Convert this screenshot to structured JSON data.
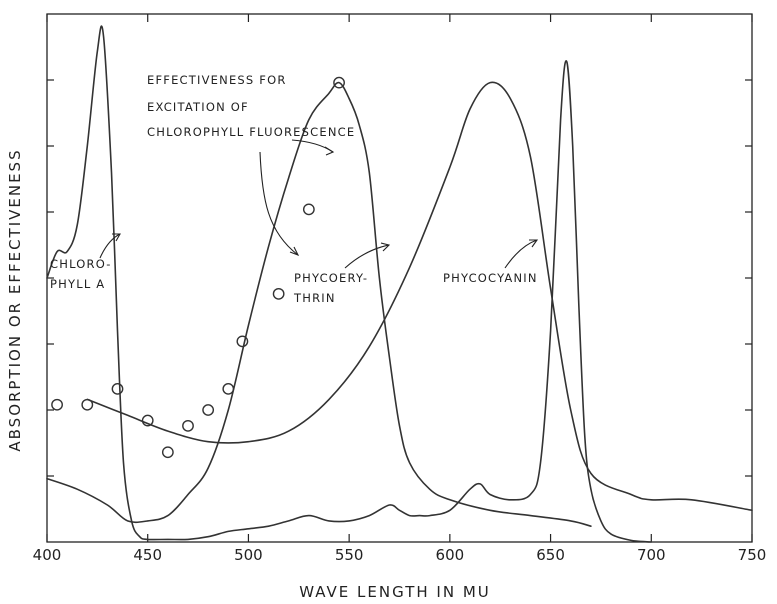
{
  "chart_data": {
    "type": "line",
    "title": "",
    "xlabel": "WAVE LENGTH IN MU",
    "ylabel": "ABSORPTION OR EFFECTIVENESS",
    "xlim": [
      400,
      750
    ],
    "ylim": [
      0,
      1
    ],
    "x_ticks": [
      400,
      450,
      500,
      550,
      600,
      650,
      700,
      750
    ],
    "y_ticks_labeled": false,
    "grid": false,
    "series": [
      {
        "name": "CHLORO-PHYLL A",
        "x": [
          400,
          405,
          410,
          415,
          420,
          425,
          428,
          432,
          435,
          438,
          442,
          446,
          450,
          460,
          470,
          480,
          490,
          500,
          510,
          520,
          530,
          540,
          550,
          560,
          570,
          575,
          580,
          585,
          590,
          600,
          610,
          615,
          620,
          630,
          640,
          645,
          650,
          655,
          658,
          661,
          664,
          667,
          670,
          675,
          680,
          690,
          700
        ],
        "y": [
          0.5,
          0.55,
          0.55,
          0.6,
          0.75,
          0.93,
          0.96,
          0.7,
          0.4,
          0.15,
          0.04,
          0.01,
          0.005,
          0.005,
          0.005,
          0.01,
          0.02,
          0.025,
          0.03,
          0.04,
          0.05,
          0.04,
          0.04,
          0.05,
          0.07,
          0.06,
          0.05,
          0.05,
          0.05,
          0.06,
          0.1,
          0.11,
          0.09,
          0.08,
          0.09,
          0.15,
          0.4,
          0.8,
          0.91,
          0.75,
          0.45,
          0.2,
          0.1,
          0.04,
          0.015,
          0.003,
          0.0
        ]
      },
      {
        "name": "PHYCOERY-THRIN",
        "x": [
          400,
          415,
          430,
          440,
          450,
          460,
          470,
          480,
          490,
          500,
          510,
          520,
          530,
          540,
          545,
          550,
          555,
          560,
          565,
          570,
          575,
          580,
          590,
          600,
          620,
          640,
          660,
          670
        ],
        "y": [
          0.12,
          0.1,
          0.07,
          0.04,
          0.04,
          0.05,
          0.09,
          0.14,
          0.25,
          0.41,
          0.56,
          0.69,
          0.8,
          0.85,
          0.87,
          0.84,
          0.79,
          0.7,
          0.5,
          0.35,
          0.22,
          0.15,
          0.1,
          0.08,
          0.06,
          0.05,
          0.04,
          0.03
        ]
      },
      {
        "name": "PHYCOCYANIN",
        "x": [
          420,
          440,
          460,
          480,
          500,
          520,
          540,
          560,
          580,
          600,
          610,
          620,
          630,
          640,
          650,
          660,
          670,
          690,
          700,
          720,
          750
        ],
        "y": [
          0.27,
          0.24,
          0.21,
          0.19,
          0.19,
          0.21,
          0.27,
          0.37,
          0.52,
          0.71,
          0.82,
          0.87,
          0.84,
          0.73,
          0.48,
          0.25,
          0.13,
          0.09,
          0.08,
          0.08,
          0.06
        ]
      },
      {
        "name": "EFFECTIVENESS FOR EXCITATION OF CHLOROPHYLL FLUORESCENCE",
        "type": "scatter",
        "x": [
          405,
          420,
          435,
          450,
          460,
          470,
          480,
          490,
          497,
          515,
          530,
          545
        ],
        "y": [
          0.26,
          0.26,
          0.29,
          0.23,
          0.17,
          0.22,
          0.25,
          0.29,
          0.38,
          0.47,
          0.63,
          0.87
        ]
      }
    ],
    "annotations": [
      {
        "text": [
          "EFFECTIVENESS FOR",
          "EXCITATION OF",
          "CHLOROPHYLL FLUORESCENCE"
        ]
      },
      {
        "text": [
          "CHLORO-",
          "PHYLL A"
        ]
      },
      {
        "text": [
          "PHYCOERY-",
          "THRIN"
        ]
      },
      {
        "text": [
          "PHYCOCYANIN"
        ]
      }
    ]
  }
}
